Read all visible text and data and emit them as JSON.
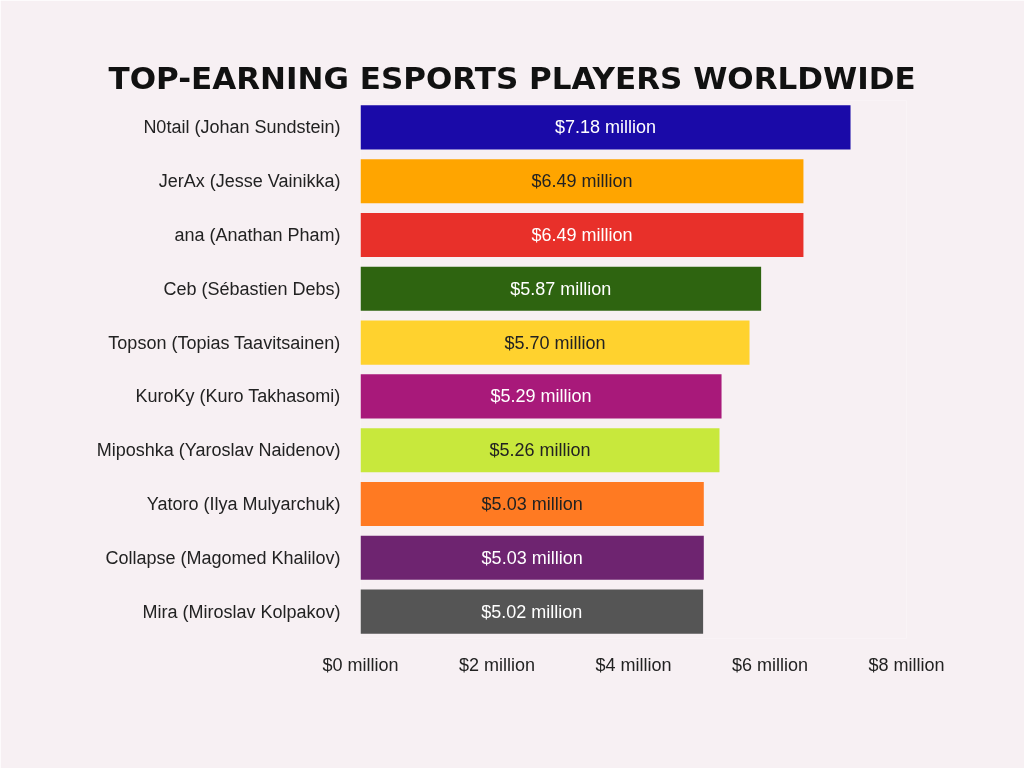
{
  "chart_data": {
    "type": "bar",
    "orientation": "horizontal",
    "title": "TOP-EARNING ESPORTS PLAYERS WORLDWIDE",
    "categories": [
      "N0tail (Johan Sundstein)",
      "JerAx (Jesse Vainikka)",
      "ana (Anathan Pham)",
      "Ceb (Sébastien Debs)",
      "Topson (Topias Taavitsainen)",
      "KuroKy (Kuro Takhasomi)",
      "Miposhka (Yaroslav Naidenov)",
      "Yatoro (Ilya Mulyarchuk)",
      "Collapse (Magomed Khalilov)",
      "Mira (Miroslav Kolpakov)"
    ],
    "values": [
      7.18,
      6.49,
      6.49,
      5.87,
      5.7,
      5.29,
      5.26,
      5.03,
      5.03,
      5.02
    ],
    "value_labels": [
      "$7.18 million",
      "$6.49 million",
      "$6.49 million",
      "$5.87 million",
      "$5.70 million",
      "$5.29 million",
      "$5.26 million",
      "$5.03 million",
      "$5.03 million",
      "$5.02 million"
    ],
    "colors": [
      "#1a0aa8",
      "#ffa500",
      "#e8302a",
      "#2e6410",
      "#ffd22e",
      "#a8197a",
      "#c8e83c",
      "#ff7a22",
      "#6e2470",
      "#555555"
    ],
    "xlim": [
      0,
      8
    ],
    "xticks": [
      {
        "value": 0,
        "label": "$0 million"
      },
      {
        "value": 2,
        "label": "$2 million"
      },
      {
        "value": 4,
        "label": "$4 million"
      },
      {
        "value": 6,
        "label": "$6 million"
      },
      {
        "value": 8,
        "label": "$8 million"
      }
    ],
    "grid": false
  }
}
